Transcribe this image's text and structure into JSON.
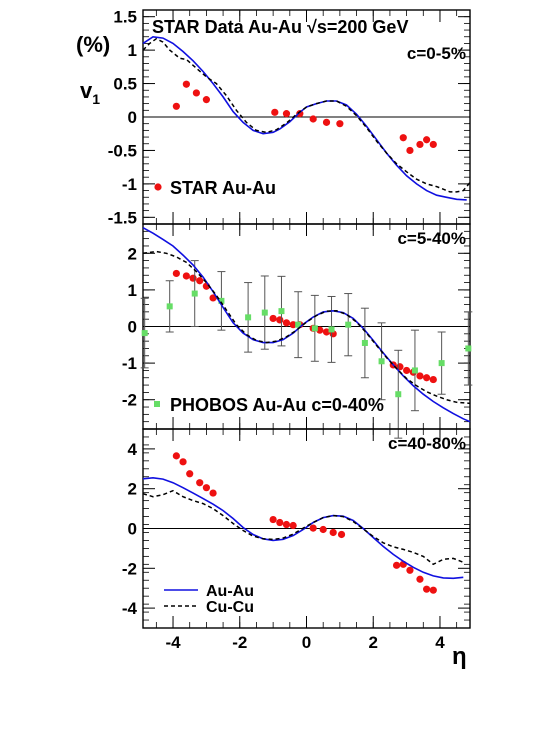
{
  "figure": {
    "header": "STAR Data  Au-Au  √s=200 GeV",
    "y_title_unit": "(%)",
    "y_title_main": "v",
    "y_title_sub": "1",
    "x_title": "η",
    "legend": [
      {
        "label": "Au-Au",
        "color": "#1010e0",
        "style": "solid"
      },
      {
        "label": "Cu-Cu",
        "color": "#000000",
        "style": "dashed"
      }
    ],
    "colors": {
      "star": "#ee1111",
      "phobos": "#66dd66",
      "auau": "#1010e0",
      "cucu": "#000000",
      "error_bar": "#555555"
    }
  },
  "chart_data": [
    {
      "type": "scatter",
      "panel": "top",
      "centrality": "c=0-5%",
      "marker_label": "STAR  Au-Au",
      "xlim": [
        -4.9,
        4.9
      ],
      "ylim": [
        -1.6,
        1.6
      ],
      "xticks": [
        -4,
        -2,
        0,
        2,
        4
      ],
      "yticks": [
        -1.5,
        -1,
        -0.5,
        0,
        0.5,
        1,
        1.5
      ],
      "ytick_labels": [
        "-1.5",
        "-1",
        "-0.5",
        "0",
        "0.5",
        "1",
        "1.5"
      ],
      "series": [
        {
          "name": "STAR  Au-Au",
          "kind": "points",
          "x": [
            -3.9,
            -3.6,
            -3.3,
            -3.0,
            -0.95,
            -0.6,
            -0.2,
            0.2,
            0.6,
            1.0,
            2.9,
            3.1,
            3.4,
            3.6,
            3.8
          ],
          "y": [
            0.16,
            0.49,
            0.36,
            0.26,
            0.07,
            0.05,
            0.05,
            -0.03,
            -0.08,
            -0.1,
            -0.31,
            -0.5,
            -0.41,
            -0.34,
            -0.41
          ]
        },
        {
          "name": "Au-Au",
          "kind": "line",
          "x": [
            -4.9,
            -4.6,
            -4.3,
            -4.0,
            -3.7,
            -3.4,
            -3.1,
            -2.8,
            -2.5,
            -2.2,
            -1.9,
            -1.6,
            -1.3,
            -1.0,
            -0.8,
            -0.5,
            -0.2,
            0.0,
            0.3,
            0.6,
            0.9,
            1.2,
            1.5,
            1.8,
            2.1,
            2.4,
            2.7,
            3.0,
            3.3,
            3.6,
            3.9,
            4.2,
            4.5,
            4.8
          ],
          "y": [
            1.1,
            1.2,
            1.18,
            1.1,
            0.98,
            0.84,
            0.68,
            0.5,
            0.3,
            0.08,
            -0.08,
            -0.2,
            -0.25,
            -0.23,
            -0.18,
            -0.07,
            0.07,
            0.15,
            0.2,
            0.24,
            0.24,
            0.18,
            0.04,
            -0.14,
            -0.34,
            -0.54,
            -0.72,
            -0.88,
            -1.0,
            -1.1,
            -1.17,
            -1.2,
            -1.23,
            -1.24
          ]
        },
        {
          "name": "Cu-Cu",
          "kind": "line",
          "x": [
            -4.9,
            -4.7,
            -4.5,
            -4.3,
            -4.1,
            -3.8,
            -3.6,
            -3.3,
            -3.0,
            -2.7,
            -2.4,
            -2.1,
            -1.8,
            -1.5,
            -1.2,
            -0.9,
            -0.6,
            -0.3,
            0.0,
            0.3,
            0.6,
            0.9,
            1.2,
            1.5,
            1.8,
            2.1,
            2.4,
            2.7,
            3.0,
            3.3,
            3.6,
            3.9,
            4.1,
            4.3,
            4.5,
            4.7,
            4.9
          ],
          "y": [
            1.0,
            1.1,
            1.17,
            1.12,
            1.0,
            0.88,
            0.86,
            0.73,
            0.6,
            0.5,
            0.32,
            0.1,
            -0.08,
            -0.2,
            -0.23,
            -0.19,
            -0.09,
            0.04,
            0.15,
            0.2,
            0.24,
            0.24,
            0.16,
            0.02,
            -0.16,
            -0.36,
            -0.54,
            -0.7,
            -0.82,
            -0.93,
            -1.0,
            -1.04,
            -1.08,
            -1.12,
            -1.12,
            -1.1,
            -0.98
          ]
        }
      ]
    },
    {
      "type": "scatter",
      "panel": "middle",
      "centrality": "c=5-40%",
      "marker_label": "PHOBOS  Au-Au  c=0-40%",
      "xlim": [
        -4.9,
        4.9
      ],
      "ylim": [
        -2.8,
        2.8
      ],
      "xticks": [
        -4,
        -2,
        0,
        2,
        4
      ],
      "yticks": [
        -2,
        -1,
        0,
        1,
        2
      ],
      "ytick_labels": [
        "-2",
        "-1",
        "0",
        "1",
        "2"
      ],
      "series": [
        {
          "name": "STAR",
          "kind": "points",
          "x": [
            -3.9,
            -3.6,
            -3.4,
            -3.2,
            -3.0,
            -2.8,
            -1.0,
            -0.8,
            -0.6,
            -0.4,
            -0.2,
            0.2,
            0.4,
            0.6,
            0.8,
            2.6,
            2.8,
            3.0,
            3.2,
            3.4,
            3.6,
            3.8
          ],
          "y": [
            1.45,
            1.38,
            1.32,
            1.25,
            1.1,
            0.78,
            0.22,
            0.18,
            0.1,
            0.05,
            0.05,
            -0.05,
            -0.1,
            -0.15,
            -0.2,
            -1.05,
            -1.1,
            -1.2,
            -1.25,
            -1.35,
            -1.4,
            -1.45
          ]
        },
        {
          "name": "PHOBOS  Au-Au  c=0-40%",
          "kind": "points",
          "x": [
            -4.85,
            -4.1,
            -3.35,
            -2.55,
            -1.75,
            -1.25,
            -0.75,
            -0.25,
            0.25,
            0.75,
            1.25,
            1.75,
            2.25,
            2.75,
            3.25,
            4.05,
            4.85
          ],
          "y": [
            -0.18,
            0.55,
            0.9,
            0.7,
            0.25,
            0.38,
            0.42,
            0.05,
            -0.05,
            -0.08,
            0.05,
            -0.45,
            -0.95,
            -1.85,
            -1.2,
            -1.0,
            -0.6
          ],
          "yerr": [
            0.95,
            0.7,
            0.9,
            0.8,
            0.95,
            1.0,
            0.95,
            0.9,
            0.9,
            0.9,
            0.85,
            0.95,
            1.05,
            1.2,
            1.1,
            0.85,
            1.0
          ]
        },
        {
          "name": "Au-Au",
          "kind": "line",
          "x": [
            -4.9,
            -4.6,
            -4.3,
            -4.0,
            -3.7,
            -3.4,
            -3.1,
            -2.8,
            -2.5,
            -2.2,
            -1.9,
            -1.6,
            -1.3,
            -1.0,
            -0.7,
            -0.4,
            -0.1,
            0.2,
            0.5,
            0.8,
            1.1,
            1.4,
            1.7,
            2.0,
            2.3,
            2.6,
            2.9,
            3.2,
            3.5,
            3.8,
            4.1,
            4.4,
            4.7,
            4.9
          ],
          "y": [
            2.7,
            2.55,
            2.38,
            2.2,
            1.95,
            1.68,
            1.35,
            0.95,
            0.52,
            0.1,
            -0.18,
            -0.36,
            -0.44,
            -0.44,
            -0.36,
            -0.18,
            0.06,
            0.26,
            0.4,
            0.43,
            0.38,
            0.22,
            -0.05,
            -0.38,
            -0.72,
            -1.05,
            -1.35,
            -1.62,
            -1.85,
            -2.05,
            -2.22,
            -2.38,
            -2.52,
            -2.6
          ]
        },
        {
          "name": "Cu-Cu",
          "kind": "line",
          "x": [
            -4.9,
            -4.5,
            -4.2,
            -3.9,
            -3.6,
            -3.3,
            -3.0,
            -2.7,
            -2.4,
            -2.1,
            -1.8,
            -1.5,
            -1.2,
            -0.9,
            -0.6,
            -0.3,
            0.0,
            0.3,
            0.6,
            0.9,
            1.2,
            1.5,
            1.8,
            2.1,
            2.4,
            2.7,
            3.0,
            3.3,
            3.6,
            3.9,
            4.2,
            4.5,
            4.9
          ],
          "y": [
            2.0,
            2.05,
            2.0,
            1.9,
            1.75,
            1.5,
            1.2,
            0.85,
            0.45,
            0.05,
            -0.22,
            -0.38,
            -0.44,
            -0.4,
            -0.28,
            -0.1,
            0.12,
            0.3,
            0.42,
            0.43,
            0.33,
            0.12,
            -0.18,
            -0.52,
            -0.85,
            -1.15,
            -1.42,
            -1.62,
            -1.78,
            -1.9,
            -2.0,
            -2.07,
            -2.1
          ]
        }
      ]
    },
    {
      "type": "scatter",
      "panel": "bottom",
      "centrality": "c=40-80%",
      "xlim": [
        -4.9,
        4.9
      ],
      "ylim": [
        -5.0,
        5.0
      ],
      "xticks": [
        -4,
        -2,
        0,
        2,
        4
      ],
      "xtick_labels": [
        "-4",
        "-2",
        "0",
        "2",
        "4"
      ],
      "yticks": [
        -4,
        -2,
        0,
        2,
        4
      ],
      "ytick_labels": [
        "-4",
        "-2",
        "0",
        "2",
        "4"
      ],
      "series": [
        {
          "name": "STAR",
          "kind": "points",
          "x": [
            -3.9,
            -3.7,
            -3.5,
            -3.2,
            -3.0,
            -2.8,
            -1.0,
            -0.8,
            -0.6,
            -0.4,
            0.2,
            0.5,
            0.8,
            1.05,
            2.7,
            2.9,
            3.1,
            3.4,
            3.6,
            3.8
          ],
          "y": [
            3.65,
            3.35,
            2.75,
            2.3,
            2.05,
            1.78,
            0.45,
            0.3,
            0.2,
            0.15,
            0.02,
            -0.05,
            -0.2,
            -0.3,
            -1.85,
            -1.8,
            -2.1,
            -2.55,
            -3.05,
            -3.1
          ]
        },
        {
          "name": "Au-Au",
          "kind": "line",
          "x": [
            -4.9,
            -4.6,
            -4.3,
            -4.0,
            -3.7,
            -3.4,
            -3.1,
            -2.8,
            -2.5,
            -2.2,
            -1.9,
            -1.6,
            -1.3,
            -1.0,
            -0.7,
            -0.4,
            -0.1,
            0.2,
            0.5,
            0.8,
            1.1,
            1.4,
            1.7,
            2.0,
            2.3,
            2.6,
            2.9,
            3.2,
            3.5,
            3.8,
            4.1,
            4.4,
            4.7
          ],
          "y": [
            2.5,
            2.55,
            2.48,
            2.3,
            2.05,
            1.78,
            1.5,
            1.22,
            0.9,
            0.5,
            0.05,
            -0.3,
            -0.52,
            -0.6,
            -0.55,
            -0.35,
            -0.05,
            0.3,
            0.55,
            0.65,
            0.62,
            0.4,
            0.0,
            -0.45,
            -0.9,
            -1.3,
            -1.65,
            -1.95,
            -2.2,
            -2.38,
            -2.48,
            -2.5,
            -2.45
          ]
        },
        {
          "name": "Cu-Cu",
          "kind": "line",
          "x": [
            -4.9,
            -4.6,
            -4.3,
            -4.0,
            -3.7,
            -3.4,
            -3.1,
            -2.8,
            -2.5,
            -2.2,
            -1.9,
            -1.6,
            -1.3,
            -1.0,
            -0.7,
            -0.4,
            -0.1,
            0.2,
            0.5,
            0.8,
            1.1,
            1.4,
            1.7,
            2.0,
            2.3,
            2.6,
            2.9,
            3.2,
            3.5,
            3.8,
            4.1,
            4.4,
            4.7
          ],
          "y": [
            1.75,
            1.6,
            1.7,
            1.9,
            1.6,
            1.4,
            1.25,
            1.0,
            0.65,
            0.25,
            -0.1,
            -0.38,
            -0.52,
            -0.55,
            -0.48,
            -0.28,
            0.02,
            0.3,
            0.55,
            0.65,
            0.6,
            0.35,
            -0.02,
            -0.4,
            -0.72,
            -0.92,
            -1.05,
            -1.2,
            -1.4,
            -1.8,
            -1.55,
            -1.5,
            -1.7
          ]
        }
      ]
    }
  ]
}
